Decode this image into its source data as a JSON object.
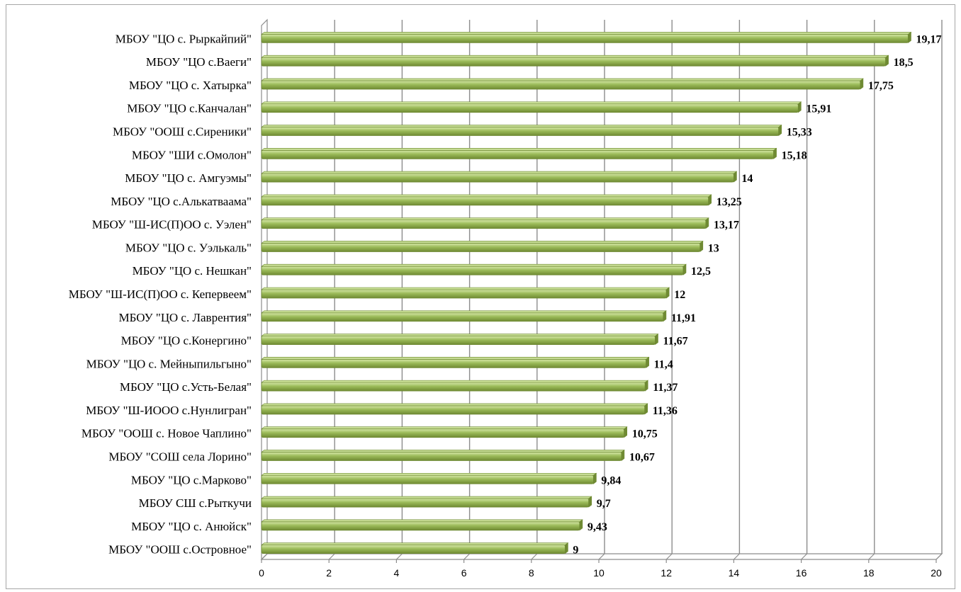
{
  "chart_data": {
    "type": "bar",
    "orientation": "horizontal",
    "title": "",
    "xlabel": "",
    "ylabel": "",
    "xlim": [
      0,
      20
    ],
    "ticks": [
      "0",
      "2",
      "4",
      "6",
      "8",
      "10",
      "12",
      "14",
      "16",
      "18",
      "20"
    ],
    "tick_values": [
      0,
      2,
      4,
      6,
      8,
      10,
      12,
      14,
      16,
      18,
      20
    ],
    "grid": true,
    "legend": "none",
    "bar_color": "#9bbb59",
    "bar_color_light": "#c7dd95",
    "bar_color_dark": "#6f8a33",
    "categories": [
      "МБОУ \"ЦО с. Рыркайпий\"",
      "МБОУ \"ЦО с.Ваеги\"",
      "МБОУ \"ЦО с. Хатырка\"",
      "МБОУ \"ЦО с.Канчалан\"",
      "МБОУ \"ООШ с.Сиреники\"",
      "МБОУ \"ШИ с.Омолон\"",
      "МБОУ \"ЦО с. Амгуэмы\"",
      "МБОУ \"ЦО с.Алькатваама\"",
      "МБОУ \"Ш-ИС(П)ОО с. Уэлен\"",
      "МБОУ \"ЦО с. Уэлькаль\"",
      "МБОУ \"ЦО с. Нешкан\"",
      "МБОУ \"Ш-ИС(П)ОО с. Кепервеем\"",
      "МБОУ \"ЦО с. Лаврентия\"",
      "МБОУ \"ЦО с.Конергино\"",
      "МБОУ \"ЦО с. Мейныпильгыно\"",
      "МБОУ \"ЦО с.Усть-Белая\"",
      "МБОУ \"Ш-ИООО с.Нунлигран\"",
      "МБОУ \"ООШ с. Новое Чаплино\"",
      "МБОУ \"СОШ села Лорино\"",
      "МБОУ \"ЦО с.Марково\"",
      "МБОУ СШ с.Рыткучи",
      "МБОУ \"ЦО с. Анюйск\"",
      "МБОУ \"ООШ с.Островное\""
    ],
    "values": [
      19.17,
      18.5,
      17.75,
      15.91,
      15.33,
      15.18,
      14,
      13.25,
      13.17,
      13,
      12.5,
      12,
      11.91,
      11.67,
      11.4,
      11.37,
      11.36,
      10.75,
      10.67,
      9.84,
      9.7,
      9.43,
      9
    ],
    "value_labels": [
      "19,17",
      "18,5",
      "17,75",
      "15,91",
      "15,33",
      "15,18",
      "14",
      "13,25",
      "13,17",
      "13",
      "12,5",
      "12",
      "11,91",
      "11,67",
      "11,4",
      "11,37",
      "11,36",
      "10,75",
      "10,67",
      "9,84",
      "9,7",
      "9,43",
      "9"
    ]
  }
}
